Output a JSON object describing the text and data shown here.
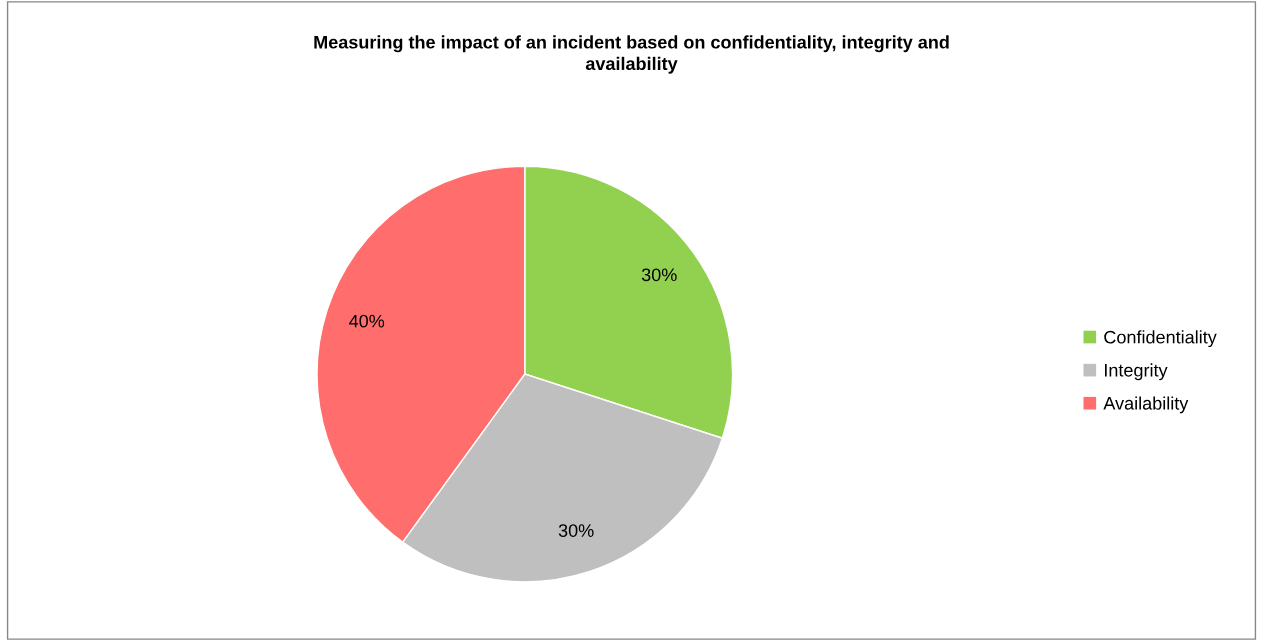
{
  "chart_data": {
    "type": "pie",
    "title": "Measuring the impact of an incident based on confidentiality, integrity and\navailability",
    "categories": [
      "Confidentiality",
      "Integrity",
      "Availability"
    ],
    "values": [
      30,
      30,
      40
    ],
    "colors": [
      "#92d050",
      "#bfbfbf",
      "#ff6d6d"
    ],
    "value_labels": [
      "30%",
      "30%",
      "40%"
    ],
    "legend": "right"
  }
}
